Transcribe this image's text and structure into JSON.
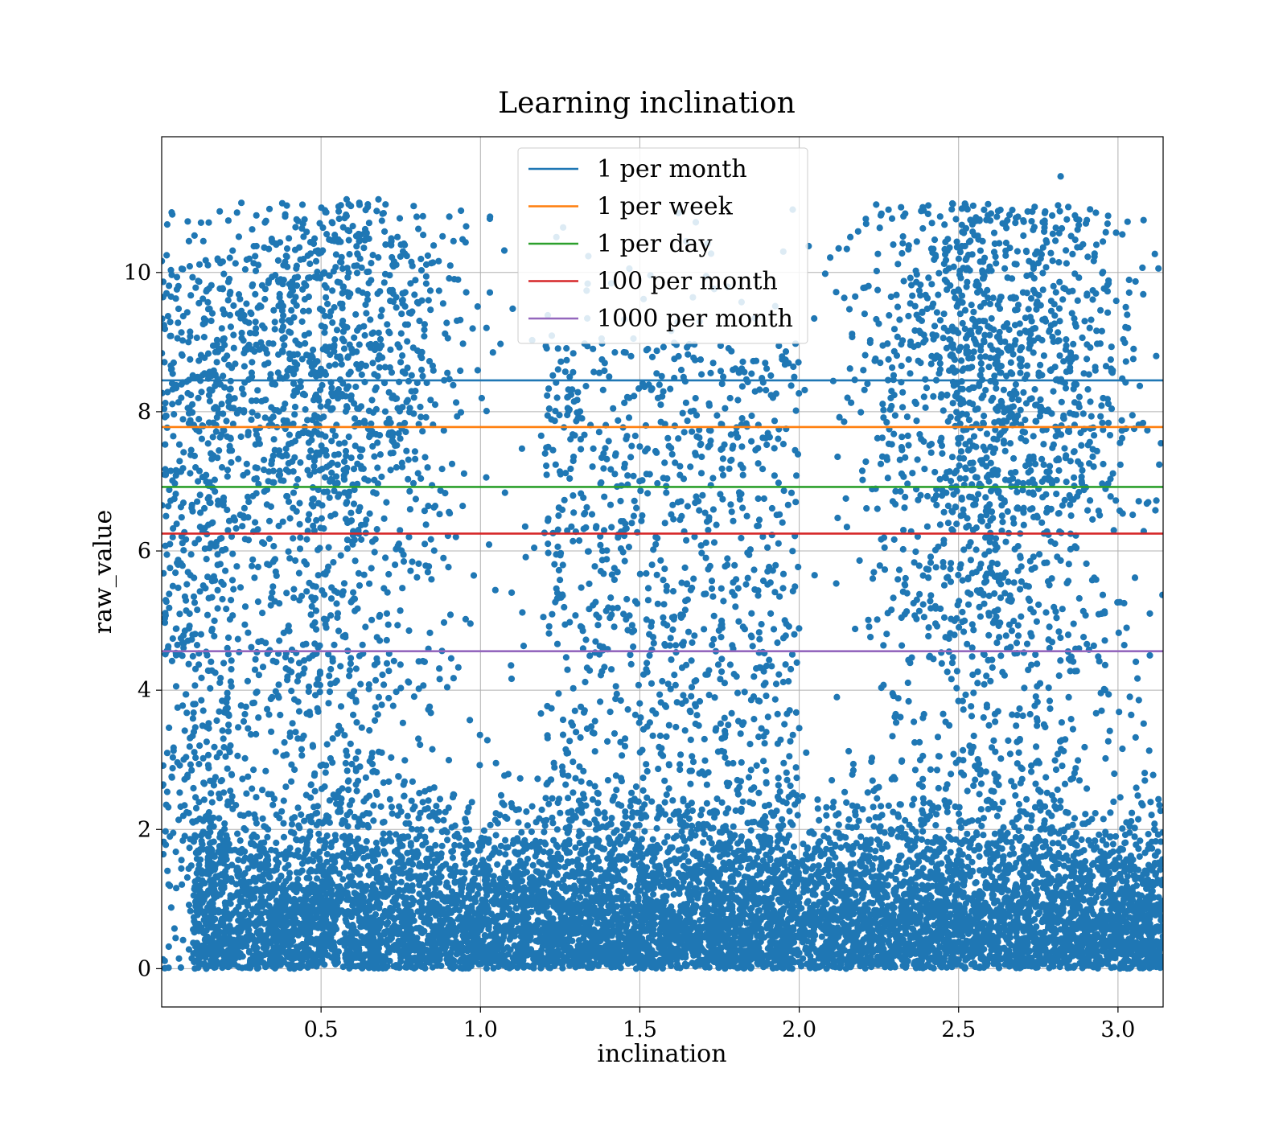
{
  "chart_data": {
    "type": "scatter",
    "title": "Learning inclination",
    "xlabel": "inclination",
    "ylabel": "raw_value",
    "xlim": [
      0.0,
      3.1416
    ],
    "ylim": [
      -0.55,
      11.95
    ],
    "xticks": [
      0.5,
      1.0,
      1.5,
      2.0,
      2.5,
      3.0
    ],
    "xtick_labels": [
      "0.5",
      "1.0",
      "1.5",
      "2.0",
      "2.5",
      "3.0"
    ],
    "yticks": [
      0,
      2,
      4,
      6,
      8,
      10
    ],
    "ytick_labels": [
      "0",
      "2",
      "4",
      "6",
      "8",
      "10"
    ],
    "grid": true,
    "legend_position": "top-center",
    "scatter": {
      "color": "#1f77b4",
      "approx_point_count": 20000,
      "description_of_density": "two dense lobes near inclination 0.5 and 2.6; dense band at raw_value 0–2 across all x; sparse between 1.2 and 2.0 above raw_value 3",
      "sample_points": [
        [
          0.25,
          11.0
        ],
        [
          0.58,
          11.05
        ],
        [
          0.68,
          11.05
        ],
        [
          0.62,
          11.0
        ],
        [
          1.03,
          10.8
        ],
        [
          2.82,
          11.38
        ],
        [
          2.58,
          10.9
        ],
        [
          2.62,
          10.8
        ],
        [
          2.77,
          10.7
        ],
        [
          2.21,
          10.7
        ],
        [
          0.42,
          10.65
        ],
        [
          0.8,
          10.8
        ],
        [
          1.95,
          10.3
        ],
        [
          0.14,
          0.0
        ],
        [
          0.05,
          3.75
        ],
        [
          1.28,
          8.5
        ],
        [
          1.63,
          8.6
        ],
        [
          1.73,
          8.7
        ],
        [
          1.48,
          9.05
        ],
        [
          1.38,
          9.05
        ],
        [
          1.5,
          7.5
        ],
        [
          1.62,
          6.7
        ],
        [
          1.55,
          6.2
        ],
        [
          1.65,
          5.3
        ],
        [
          1.8,
          5.2
        ],
        [
          3.12,
          0.05
        ],
        [
          3.13,
          2.35
        ],
        [
          3.1,
          4.5
        ],
        [
          3.1,
          5.1
        ],
        [
          3.12,
          8.8
        ]
      ]
    },
    "series": [
      {
        "name": "1 per month",
        "type": "hline",
        "y": 8.45,
        "color": "#1f77b4"
      },
      {
        "name": "1 per week",
        "type": "hline",
        "y": 7.78,
        "color": "#ff7f0e"
      },
      {
        "name": "1 per day",
        "type": "hline",
        "y": 6.92,
        "color": "#2ca02c"
      },
      {
        "name": "100 per month",
        "type": "hline",
        "y": 6.25,
        "color": "#d62728"
      },
      {
        "name": "1000 per month",
        "type": "hline",
        "y": 4.56,
        "color": "#9467bd"
      }
    ]
  }
}
